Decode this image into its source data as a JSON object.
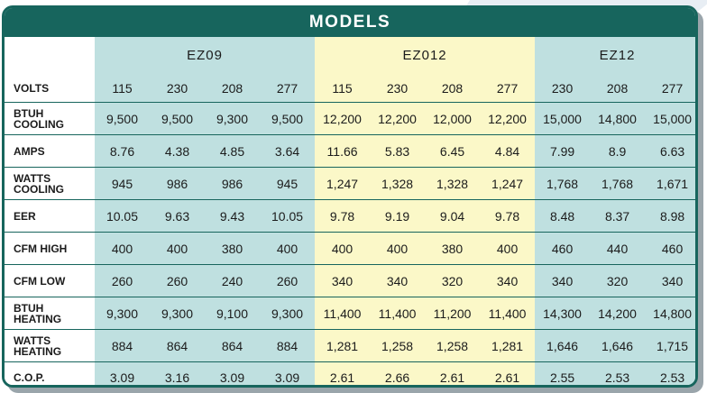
{
  "title": "MODELS",
  "groups": [
    "EZ09",
    "EZ012",
    "EZ12"
  ],
  "volts_label": "VOLTS",
  "volts": [
    "115",
    "230",
    "208",
    "277",
    "115",
    "230",
    "208",
    "277",
    "230",
    "208",
    "277"
  ],
  "rows": [
    {
      "label": [
        "BTUH",
        "COOLING"
      ],
      "values": [
        "9,500",
        "9,500",
        "9,300",
        "9,500",
        "12,200",
        "12,200",
        "12,000",
        "12,200",
        "15,000",
        "14,800",
        "15,000"
      ]
    },
    {
      "label": [
        "AMPS"
      ],
      "values": [
        "8.76",
        "4.38",
        "4.85",
        "3.64",
        "11.66",
        "5.83",
        "6.45",
        "4.84",
        "7.99",
        "8.9",
        "6.63"
      ]
    },
    {
      "label": [
        "WATTS",
        "COOLING"
      ],
      "values": [
        "945",
        "986",
        "986",
        "945",
        "1,247",
        "1,328",
        "1,328",
        "1,247",
        "1,768",
        "1,768",
        "1,671"
      ]
    },
    {
      "label": [
        "EER"
      ],
      "values": [
        "10.05",
        "9.63",
        "9.43",
        "10.05",
        "9.78",
        "9.19",
        "9.04",
        "9.78",
        "8.48",
        "8.37",
        "8.98"
      ]
    },
    {
      "label": [
        "CFM HIGH"
      ],
      "values": [
        "400",
        "400",
        "380",
        "400",
        "400",
        "400",
        "380",
        "400",
        "460",
        "440",
        "460"
      ]
    },
    {
      "label": [
        "CFM LOW"
      ],
      "values": [
        "260",
        "260",
        "240",
        "260",
        "340",
        "340",
        "320",
        "340",
        "340",
        "320",
        "340"
      ]
    },
    {
      "label": [
        "BTUH",
        "HEATING"
      ],
      "values": [
        "9,300",
        "9,300",
        "9,100",
        "9,300",
        "11,400",
        "11,400",
        "11,200",
        "11,400",
        "14,300",
        "14,200",
        "14,800"
      ]
    },
    {
      "label": [
        "WATTS",
        "HEATING"
      ],
      "values": [
        "884",
        "864",
        "864",
        "884",
        "1,281",
        "1,258",
        "1,258",
        "1,281",
        "1,646",
        "1,646",
        "1,715"
      ]
    },
    {
      "label": [
        "C.O.P."
      ],
      "values": [
        "3.09",
        "3.16",
        "3.09",
        "3.09",
        "2.61",
        "2.66",
        "2.61",
        "2.61",
        "2.55",
        "2.53",
        "2.53"
      ]
    }
  ],
  "colors": {
    "header": "#17655d",
    "group_teal": "#bfe0e0",
    "group_yellow": "#fbf8c8"
  }
}
